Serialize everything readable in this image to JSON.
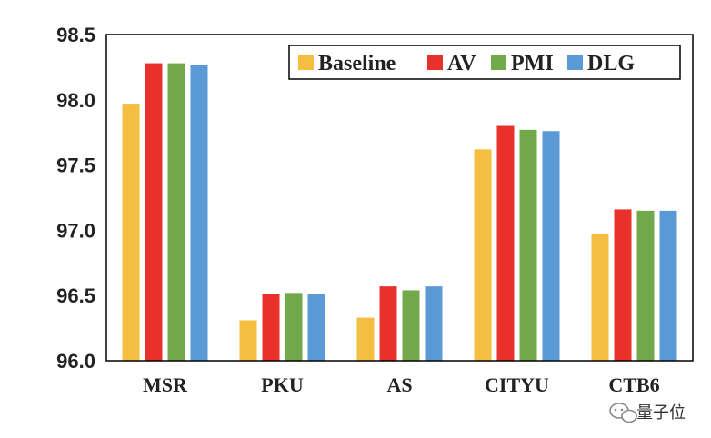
{
  "chart_data": {
    "type": "bar",
    "title": "",
    "xlabel": "",
    "ylabel": "",
    "categories": [
      "MSR",
      "PKU",
      "AS",
      "CITYU",
      "CTB6"
    ],
    "ylim": [
      96.0,
      98.5
    ],
    "yticks": [
      "96.0",
      "96.5",
      "97.0",
      "97.5",
      "98.0",
      "98.5"
    ],
    "ytick_values": [
      96.0,
      96.5,
      97.0,
      97.5,
      98.0,
      98.5
    ],
    "legend_position": "top-right",
    "grid": false,
    "series": [
      {
        "name": "Baseline",
        "color": "#F5BE41",
        "values": [
          97.97,
          96.31,
          96.33,
          97.62,
          96.97
        ]
      },
      {
        "name": "AV",
        "color": "#E8312A",
        "values": [
          98.28,
          96.51,
          96.57,
          97.8,
          97.16
        ]
      },
      {
        "name": "PMI",
        "color": "#72A94A",
        "values": [
          98.28,
          96.52,
          96.54,
          97.77,
          97.15
        ]
      },
      {
        "name": "DLG",
        "color": "#5B9BD5",
        "values": [
          98.27,
          96.51,
          96.57,
          97.76,
          97.15
        ]
      }
    ]
  },
  "watermark": {
    "text": "量子位",
    "icon": "wechat-icon"
  }
}
